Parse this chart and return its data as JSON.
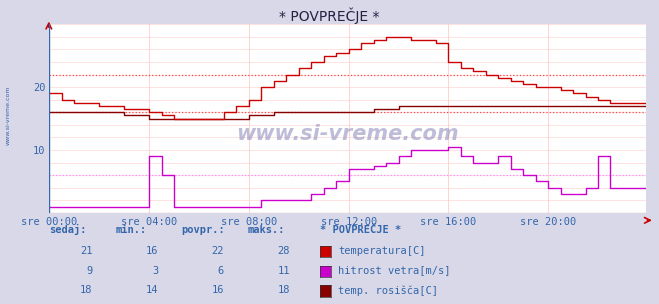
{
  "title": "* POVPREČJE *",
  "background_color": "#d8d8e8",
  "plot_bg_color": "#ffffff",
  "grid_color_v": "#ffcccc",
  "grid_color_h": "#ffcccc",
  "x_ticks_labels": [
    "sre 00:00",
    "sre 04:00",
    "sre 08:00",
    "sre 12:00",
    "sre 16:00",
    "sre 20:00"
  ],
  "x_ticks_pos": [
    0,
    48,
    96,
    144,
    192,
    240
  ],
  "ylim": [
    0,
    30
  ],
  "y_ticks": [
    10,
    20
  ],
  "temp_color": "#cc0000",
  "wind_color": "#cc00cc",
  "dew_color": "#880000",
  "avg_line_color_temp": "#ff4444",
  "avg_line_color_wind": "#ff88ff",
  "watermark": "www.si-vreme.com",
  "legend_title": "* POVPREČJE *",
  "legend_items": [
    {
      "label": "temperatura[C]",
      "color": "#cc0000"
    },
    {
      "label": "hitrost vetra[m/s]",
      "color": "#cc00cc"
    },
    {
      "label": "temp. rosišča[C]",
      "color": "#880000"
    }
  ],
  "table_headers": [
    "sedaj:",
    "min.:",
    "povpr.:",
    "maks.:"
  ],
  "table_data": [
    [
      21,
      16,
      22,
      28
    ],
    [
      9,
      3,
      6,
      11
    ],
    [
      18,
      14,
      16,
      18
    ]
  ],
  "avg_temp": 22,
  "avg_wind": 6,
  "avg_dew": 16,
  "n_points": 288
}
